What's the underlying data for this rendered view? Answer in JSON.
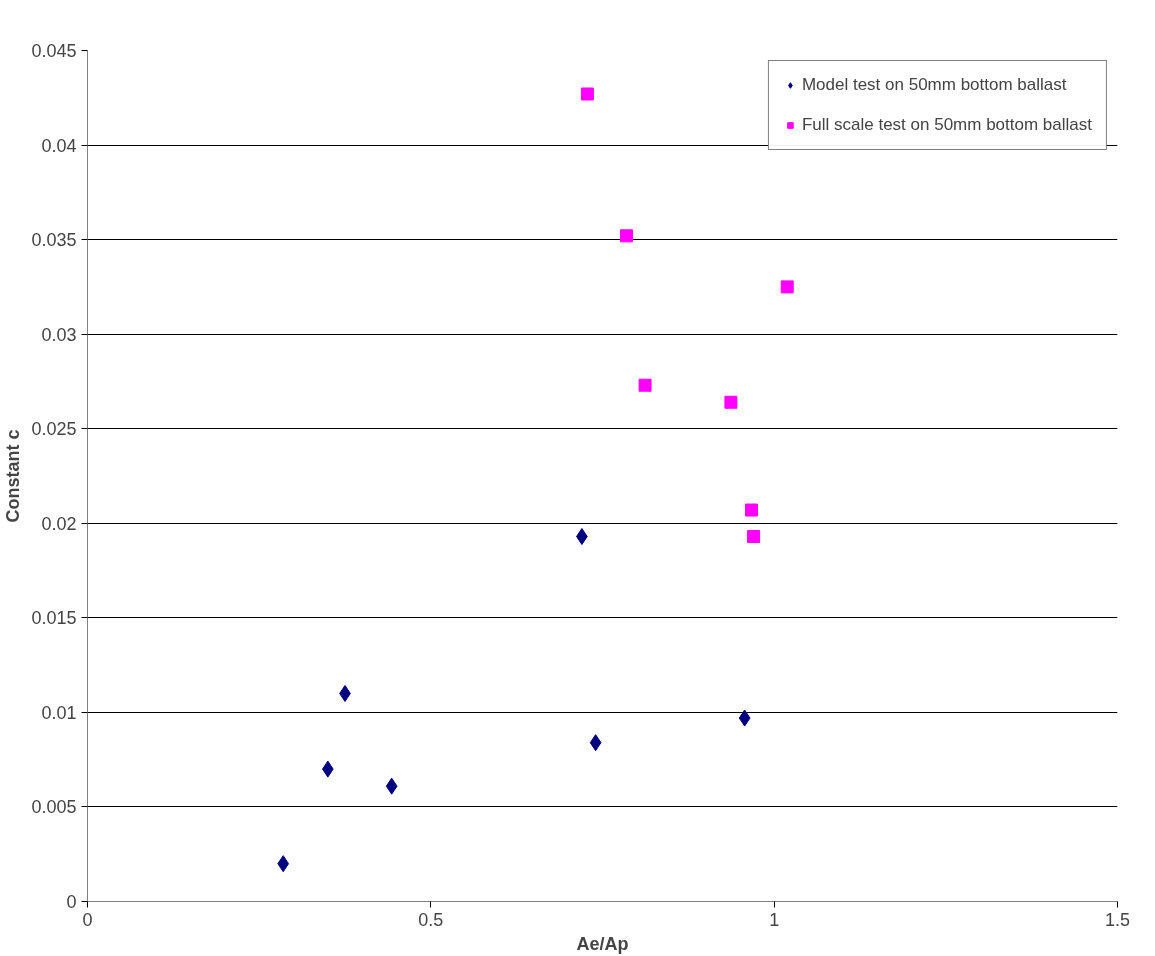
{
  "chart_data": {
    "type": "scatter",
    "xlabel": "Ae/Ap",
    "ylabel": "Constant c",
    "xlim": [
      0,
      1.5
    ],
    "xticks": [
      0,
      0.5,
      1,
      1.5
    ],
    "ylim": [
      0,
      0.045
    ],
    "yticks": [
      0,
      0.005,
      0.01,
      0.015,
      0.02,
      0.025,
      0.03,
      0.035,
      0.04,
      0.045
    ],
    "grid": "y",
    "legend": "top right",
    "series": [
      {
        "name": "Model test on 50mm bottom ballast",
        "color": "#000080",
        "marker": "diamond",
        "x": [
          0.285,
          0.35,
          0.375,
          0.443,
          0.72,
          0.74,
          0.957
        ],
        "values": [
          0.002,
          0.007,
          0.011,
          0.0061,
          0.0193,
          0.0084,
          0.0097
        ]
      },
      {
        "name": "Full scale test on 50mm bottom ballast",
        "color": "#ff00ff",
        "marker": "square",
        "x": [
          0.728,
          0.785,
          0.812,
          1.019,
          0.937,
          0.967,
          0.97
        ],
        "values": [
          0.0427,
          0.0352,
          0.0273,
          0.0325,
          0.0264,
          0.0207,
          0.0193
        ]
      }
    ]
  }
}
